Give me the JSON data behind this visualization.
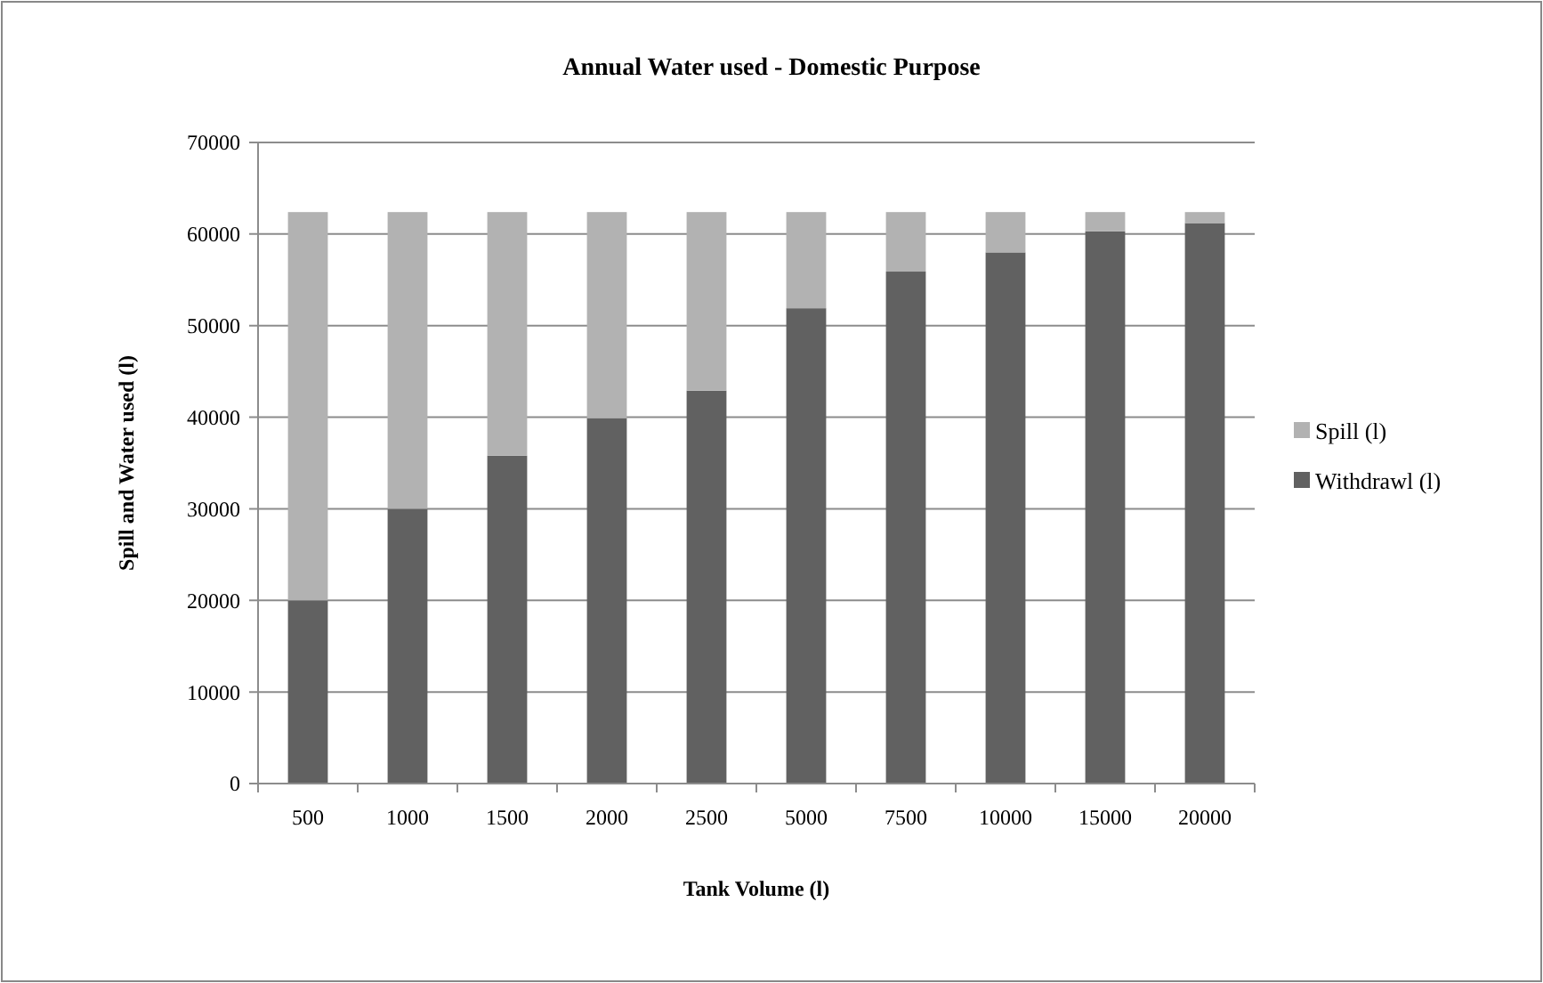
{
  "chart_data": {
    "type": "bar",
    "title": "Annual Water used - Domestic Purpose",
    "xlabel": "Tank Volume (l)",
    "ylabel": "Spill and Water used (l)",
    "categories": [
      "500",
      "1000",
      "1500",
      "2000",
      "2500",
      "5000",
      "7500",
      "10000",
      "15000",
      "20000"
    ],
    "series": [
      {
        "name": "Withdrawl (l)",
        "color": "#616161",
        "values": [
          20000,
          30000,
          35800,
          39900,
          42900,
          51900,
          55900,
          58000,
          60300,
          61200
        ]
      },
      {
        "name": "Spill (l)",
        "color": "#b2b2b2",
        "values": [
          42400,
          32400,
          26600,
          22500,
          19500,
          10500,
          6500,
          4400,
          2100,
          1200
        ]
      }
    ],
    "stacked": true,
    "ylim": [
      0,
      70000
    ],
    "yticks": [
      0,
      10000,
      20000,
      30000,
      40000,
      50000,
      60000,
      70000
    ],
    "grid": "y",
    "legend": "right"
  }
}
